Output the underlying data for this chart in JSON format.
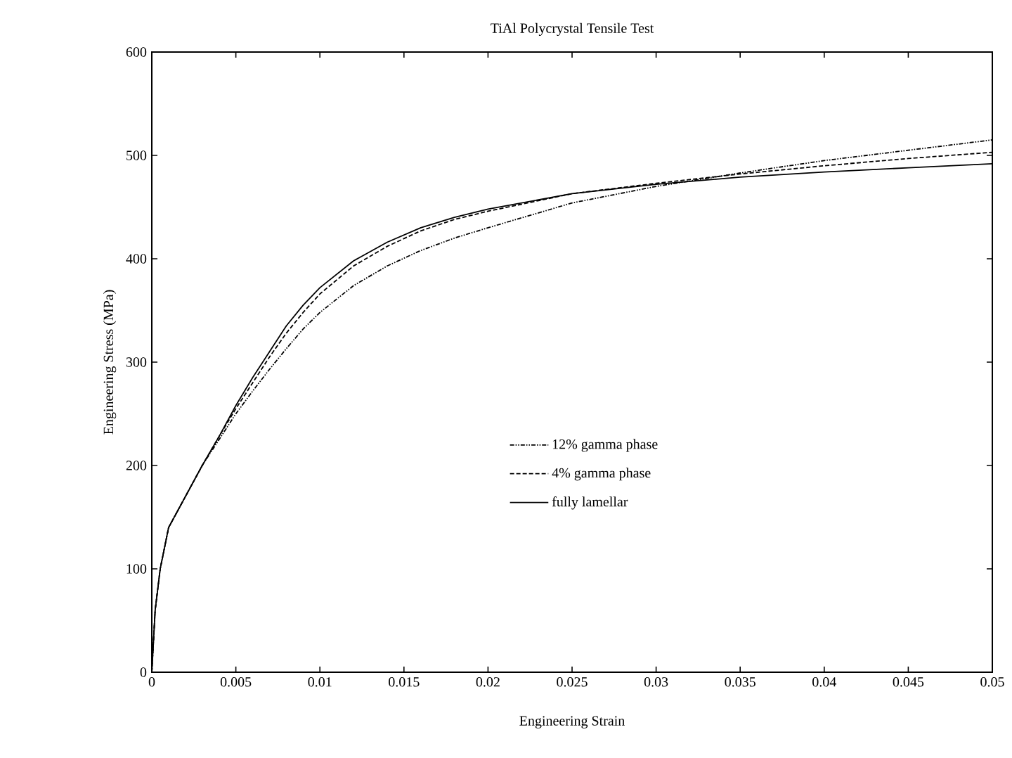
{
  "chart_data": {
    "type": "line",
    "title": "TiAl Polycrystal Tensile Test",
    "xlabel": "Engineering Strain",
    "ylabel": "Engineering Stress (MPa)",
    "xlim": [
      0,
      0.05
    ],
    "ylim": [
      0,
      600
    ],
    "xticks": [
      0,
      0.005,
      0.01,
      0.015,
      0.02,
      0.025,
      0.03,
      0.035,
      0.04,
      0.045,
      0.05
    ],
    "yticks": [
      0,
      100,
      200,
      300,
      400,
      500,
      600
    ],
    "grid": false,
    "legend": "center",
    "marker": "none",
    "series": [
      {
        "name": "12% gamma phase",
        "color": "#000000",
        "line_style": "dotted",
        "x": [
          0,
          0.0002,
          0.0005,
          0.001,
          0.002,
          0.003,
          0.004,
          0.005,
          0.006,
          0.007,
          0.008,
          0.009,
          0.01,
          0.012,
          0.014,
          0.016,
          0.018,
          0.02,
          0.025,
          0.03,
          0.035,
          0.04,
          0.045,
          0.05
        ],
        "values": [
          0,
          60,
          100,
          140,
          170,
          200,
          225,
          250,
          272,
          293,
          313,
          332,
          348,
          374,
          393,
          408,
          420,
          430,
          454,
          470,
          483,
          495,
          505,
          515
        ]
      },
      {
        "name": "4% gamma phase",
        "color": "#000000",
        "line_style": "dashed",
        "x": [
          0,
          0.0002,
          0.0005,
          0.001,
          0.002,
          0.003,
          0.004,
          0.005,
          0.006,
          0.007,
          0.008,
          0.009,
          0.01,
          0.012,
          0.014,
          0.016,
          0.018,
          0.02,
          0.025,
          0.03,
          0.035,
          0.04,
          0.045,
          0.05
        ],
        "values": [
          0,
          60,
          100,
          140,
          170,
          200,
          228,
          255,
          280,
          305,
          328,
          348,
          366,
          393,
          412,
          427,
          438,
          446,
          463,
          473,
          482,
          490,
          497,
          503
        ]
      },
      {
        "name": "fully lamellar",
        "color": "#000000",
        "line_style": "solid",
        "x": [
          0,
          0.0002,
          0.0005,
          0.001,
          0.002,
          0.003,
          0.004,
          0.005,
          0.006,
          0.007,
          0.008,
          0.009,
          0.01,
          0.012,
          0.014,
          0.016,
          0.018,
          0.02,
          0.025,
          0.03,
          0.035,
          0.04,
          0.045,
          0.05
        ],
        "values": [
          0,
          60,
          100,
          140,
          170,
          200,
          228,
          258,
          285,
          310,
          335,
          355,
          372,
          398,
          416,
          430,
          440,
          448,
          463,
          472,
          479,
          484,
          488,
          492
        ]
      }
    ]
  }
}
